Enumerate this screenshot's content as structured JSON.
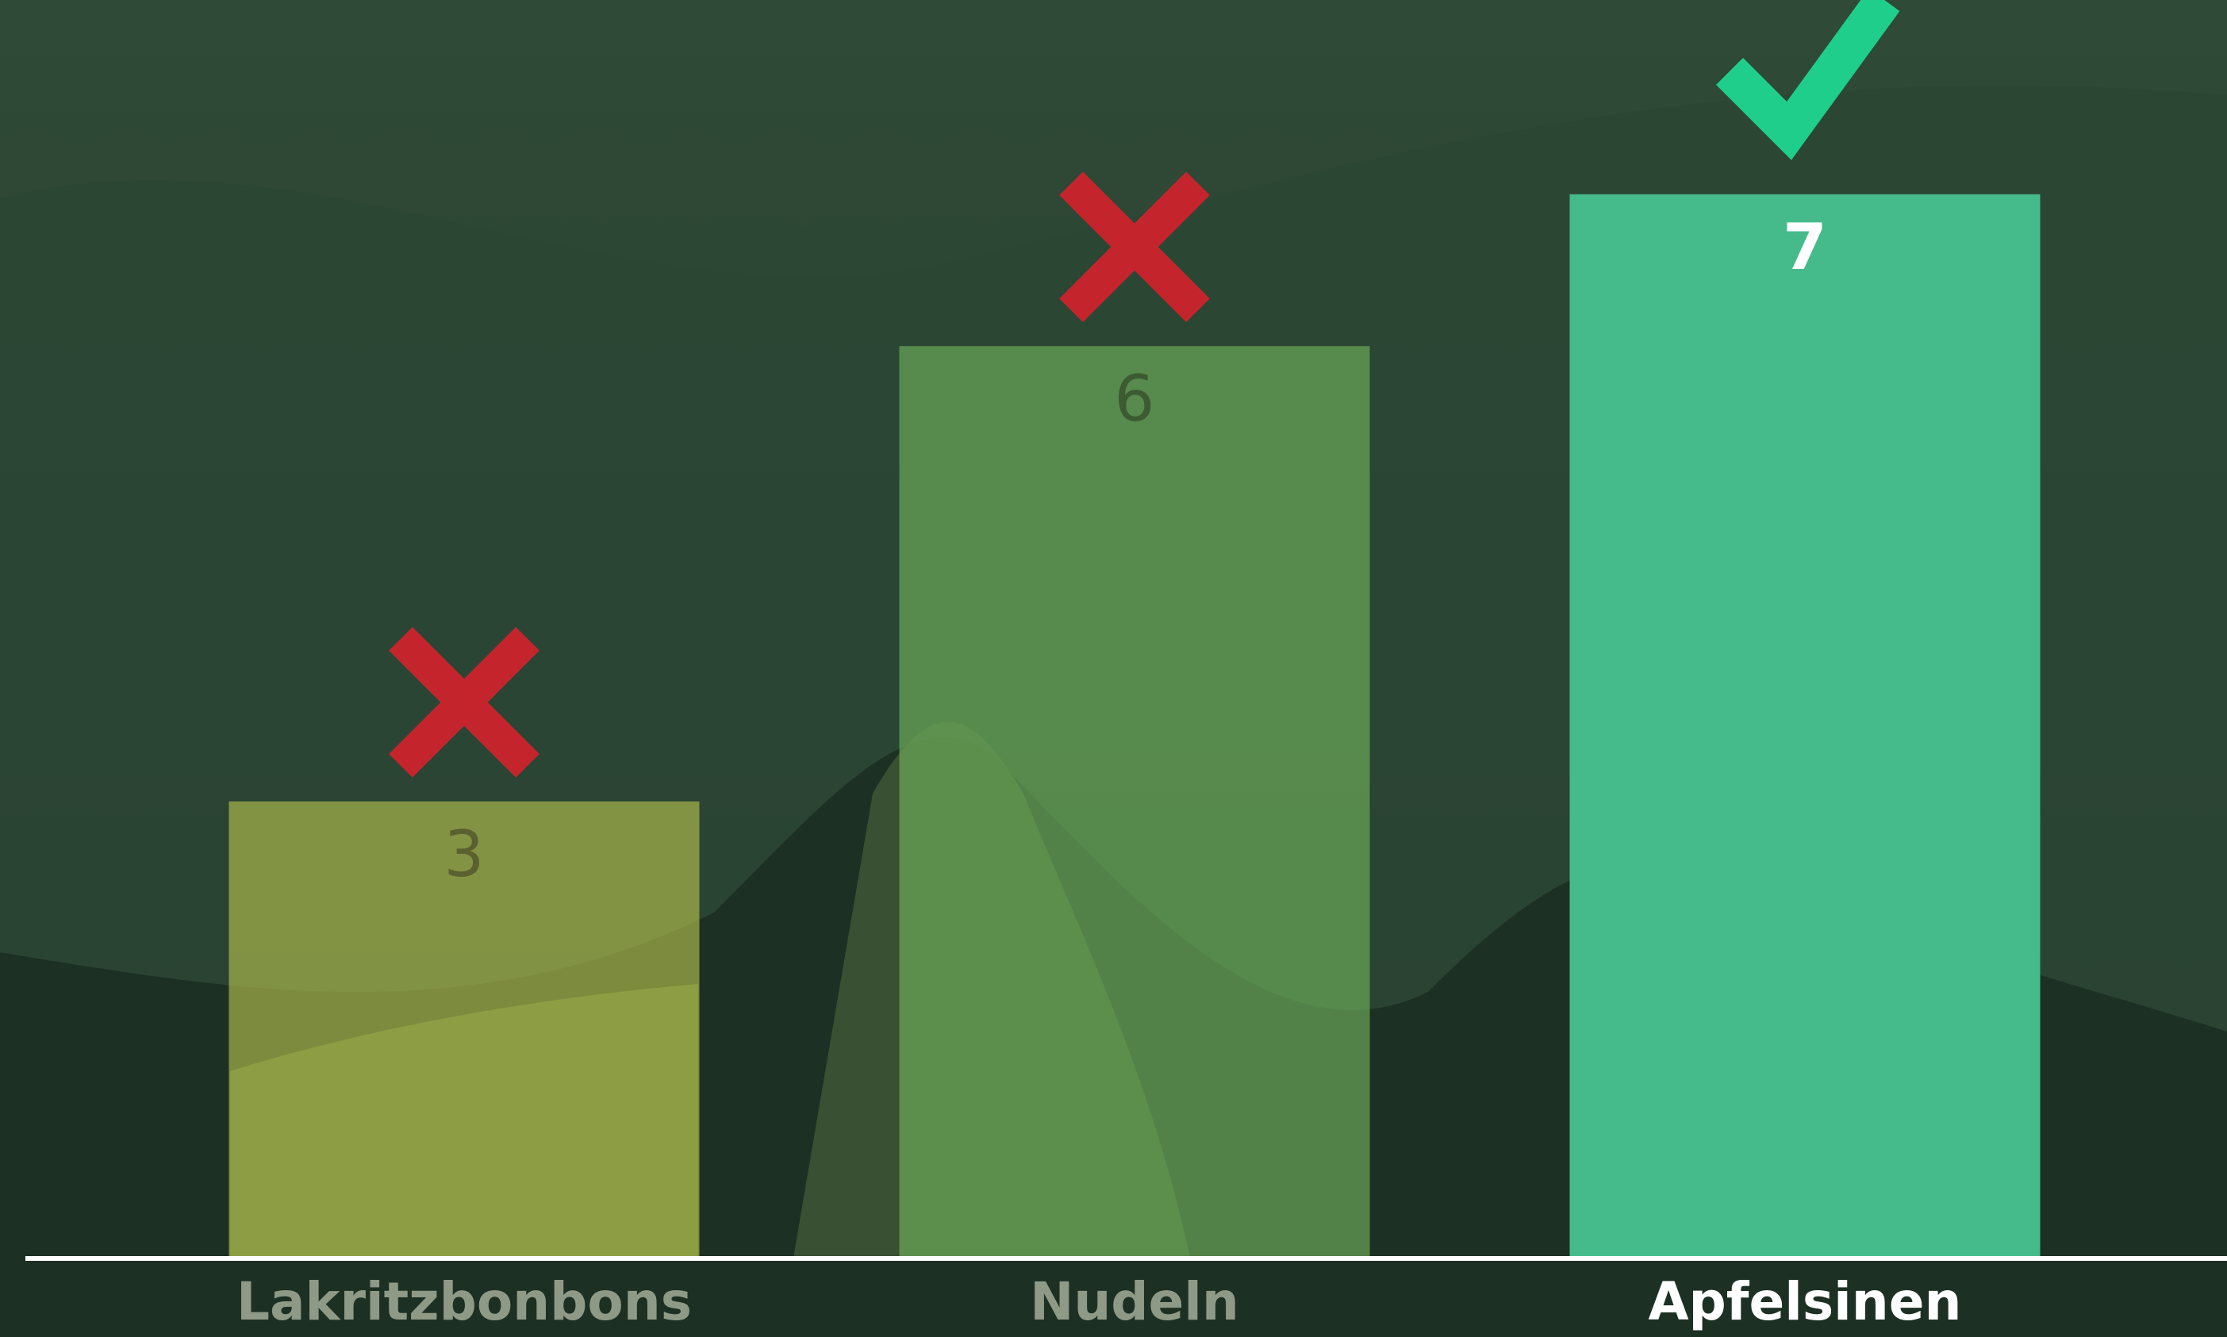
{
  "chart_data": {
    "type": "bar",
    "categories": [
      "Lakritzbonbons",
      "Nudeln",
      "Apfelsinen"
    ],
    "values": [
      3,
      6,
      7
    ],
    "colors": [
      "rgba(190,200,80,0.6)",
      "rgba(110,175,90,0.65)",
      "#45bb8c"
    ],
    "ylim": [
      0,
      8.28
    ]
  }
}
